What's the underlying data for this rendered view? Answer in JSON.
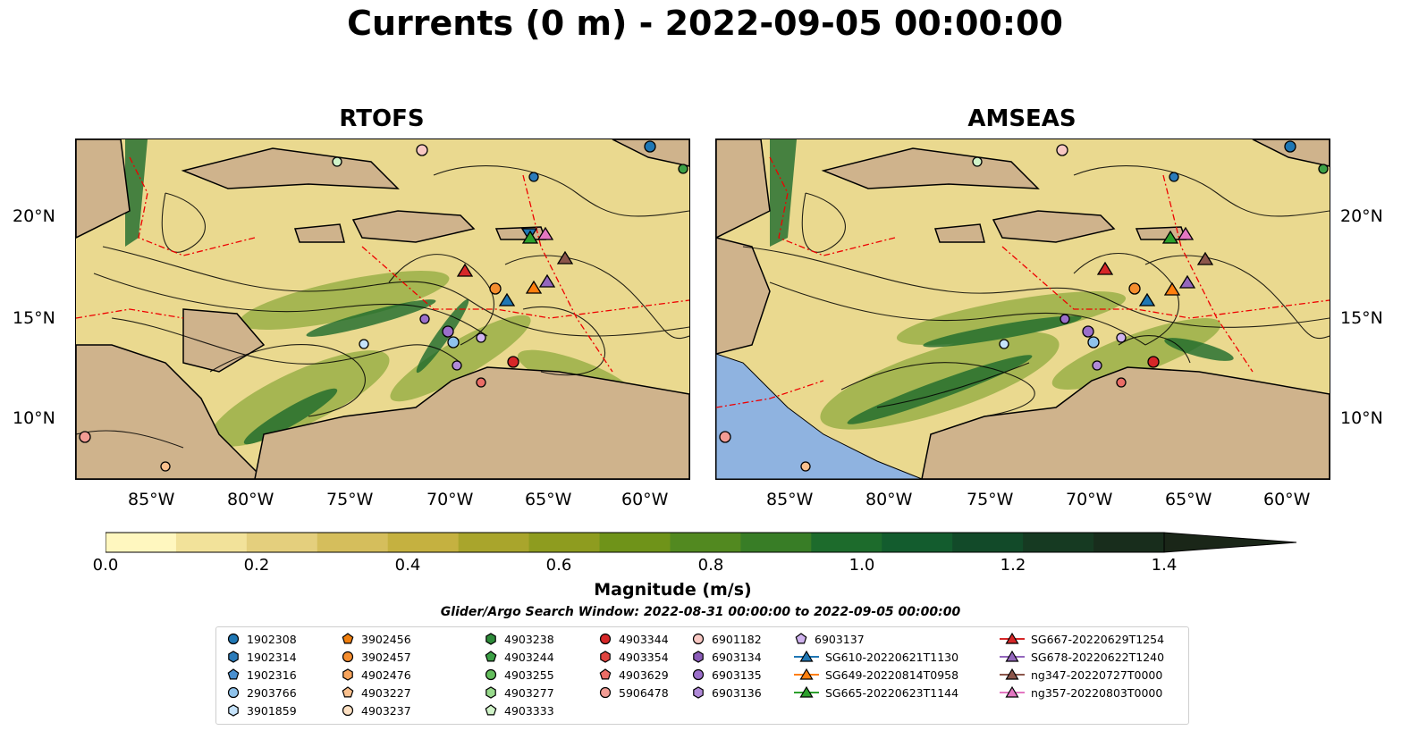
{
  "title": "Currents (0 m) - 2022-09-05 00:00:00",
  "panels": [
    {
      "title": "RTOFS"
    },
    {
      "title": "AMSEAS"
    }
  ],
  "lat_ticks": [
    "20°N",
    "15°N",
    "10°N"
  ],
  "lon_ticks": [
    "85°W",
    "80°W",
    "75°W",
    "70°W",
    "65°W",
    "60°W"
  ],
  "colorbar": {
    "label": "Magnitude (m/s)",
    "ticks": [
      "0.0",
      "0.2",
      "0.4",
      "0.6",
      "0.8",
      "1.0",
      "1.2",
      "1.4"
    ],
    "colors": [
      "#fff7bf",
      "#f2e29a",
      "#e4cf7d",
      "#d5be5c",
      "#c5b140",
      "#a9a52c",
      "#8e9c1f",
      "#6f9319",
      "#528920",
      "#387d26",
      "#1d6b2c",
      "#135c2e",
      "#124a29",
      "#163a22",
      "#182d1c",
      "#1a2618"
    ],
    "min": 0.0,
    "max": 1.6,
    "extend": "max"
  },
  "search_window": "Glider/Argo Search Window: 2022-08-31 00:00:00 to 2022-09-05 00:00:00",
  "legend": {
    "columns": [
      [
        {
          "label": "1902308",
          "marker": "circle",
          "color": "#1f77b4"
        },
        {
          "label": "1902314",
          "marker": "hexagon",
          "color": "#2b7bba"
        },
        {
          "label": "1902316",
          "marker": "pentagon",
          "color": "#4a90d0"
        },
        {
          "label": "2903766",
          "marker": "circle",
          "color": "#8fc3ec"
        },
        {
          "label": "3901859",
          "marker": "hexagon",
          "color": "#c6e3fb"
        }
      ],
      [
        {
          "label": "3902456",
          "marker": "pentagon",
          "color": "#f07f0e"
        },
        {
          "label": "3902457",
          "marker": "circle",
          "color": "#f58d2e"
        },
        {
          "label": "4902476",
          "marker": "hexagon",
          "color": "#f8a45c"
        },
        {
          "label": "4903227",
          "marker": "pentagon",
          "color": "#fac08d"
        },
        {
          "label": "4903237",
          "marker": "circle",
          "color": "#fde0c2"
        }
      ],
      [
        {
          "label": "4903238",
          "marker": "hexagon",
          "color": "#2e8b3a"
        },
        {
          "label": "4903244",
          "marker": "pentagon",
          "color": "#3ca046"
        },
        {
          "label": "4903255",
          "marker": "circle",
          "color": "#63bd5c"
        },
        {
          "label": "4903277",
          "marker": "hexagon",
          "color": "#97d98b"
        },
        {
          "label": "4903333",
          "marker": "pentagon",
          "color": "#d0f3c8"
        }
      ],
      [
        {
          "label": "4903344",
          "marker": "circle",
          "color": "#d62728"
        },
        {
          "label": "4903354",
          "marker": "hexagon",
          "color": "#e0443f"
        },
        {
          "label": "4903629",
          "marker": "pentagon",
          "color": "#ea6d66"
        },
        {
          "label": "5906478",
          "marker": "circle",
          "color": "#f29c94"
        }
      ],
      [
        {
          "label": "6901182",
          "marker": "circle",
          "color": "#f8c8c3"
        },
        {
          "label": "6903134",
          "marker": "hexagon",
          "color": "#8a5bb8"
        },
        {
          "label": "6903135",
          "marker": "circle",
          "color": "#9b6fca"
        },
        {
          "label": "6903136",
          "marker": "hexagon",
          "color": "#b08ad8"
        }
      ],
      [
        {
          "label": "6903137",
          "marker": "pentagon",
          "color": "#d0b3ef"
        },
        {
          "label": "SG610-20220621T1130",
          "marker": "triangle",
          "color": "#1f77b4"
        },
        {
          "label": "SG649-20220814T0958",
          "marker": "triangle",
          "color": "#ff7f0e"
        },
        {
          "label": "SG665-20220623T1144",
          "marker": "triangle",
          "color": "#2ca02c"
        }
      ],
      [
        {
          "label": "SG667-20220629T1254",
          "marker": "triangle",
          "color": "#d62728"
        },
        {
          "label": "SG678-20220622T1240",
          "marker": "triangle",
          "color": "#9467bd"
        },
        {
          "label": "ng347-20220727T0000",
          "marker": "triangle",
          "color": "#8c564b"
        },
        {
          "label": "ng357-20220803T0000",
          "marker": "triangle",
          "color": "#e377c2"
        }
      ]
    ]
  }
}
